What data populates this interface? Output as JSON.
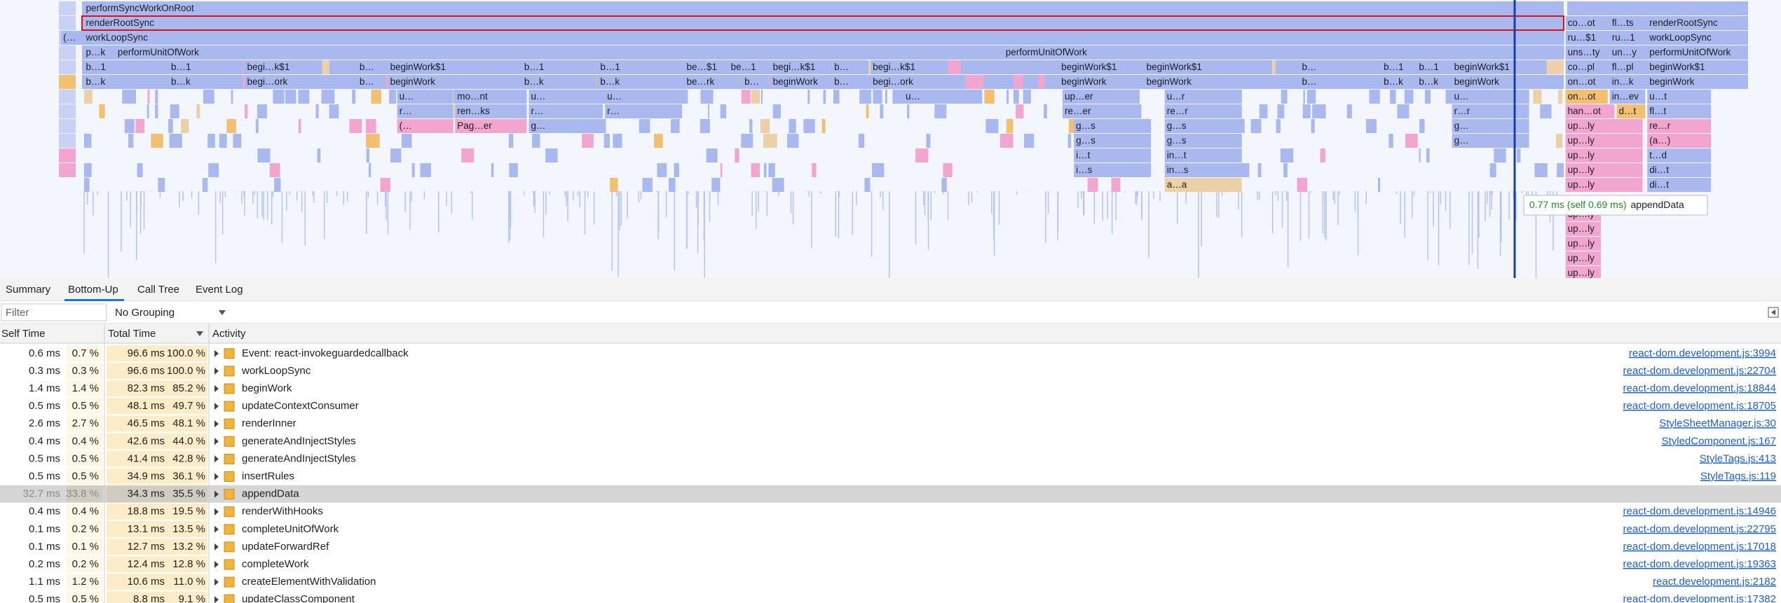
{
  "flame_chart": {
    "rows": [
      [
        "performSyncWorkOnRoot"
      ],
      [
        "renderRootSync",
        "co…ot",
        "fl…ts",
        "renderRootSync"
      ],
      [
        "(…",
        "workLoopSync",
        "ru…$1",
        "ru…1",
        "workLoopSync"
      ],
      [
        "p…k",
        "performUnitOfWork",
        "performUnitOfWork",
        "uns…ty",
        "un…y",
        "performUnitOfWork"
      ],
      [
        "b…1",
        "b…1",
        "begi…k$1",
        "b…",
        "beginWork$1",
        "b…1",
        "b…1",
        "be…$1",
        "be…1",
        "begi…k$1",
        "b…",
        "begi…k$1",
        "beginWork$1",
        "beginWork$1",
        "b…",
        "b…1",
        "b…1",
        "beginWork$1",
        "co…pl",
        "fl…pl",
        "beginWork$1"
      ],
      [
        "b…k",
        "b…k",
        "begi…ork",
        "b…",
        "beginWork",
        "b…k",
        "b…k",
        "be…rk",
        "b…",
        "beginWork",
        "b…",
        "begi…ork",
        "beginWork",
        "beginWork",
        "b…",
        "b…k",
        "b…k",
        "beginWork",
        "on…ot",
        "in…k",
        "beginWork"
      ],
      [
        "u…",
        "mo…nt",
        "u…",
        "u…",
        "u…",
        "up…er",
        "u…r",
        "u…",
        "on…ot",
        "in…ev",
        "u…t"
      ],
      [
        "r…",
        "ren…ks",
        "r…",
        "r…",
        "re…er",
        "re…r",
        "r…r",
        "han…ot",
        "d…t",
        "fl…t"
      ],
      [
        "(…",
        "Pag…er",
        "g…",
        "g…s",
        "g…s",
        "g…",
        "up…ly",
        "re…r"
      ],
      [
        "g…s",
        "g…s",
        "g…",
        "up…ly",
        "(a…)"
      ],
      [
        "i…t",
        "in…t",
        "up…ly",
        "t…d"
      ],
      [
        "i…s",
        "in…s",
        "up…ly",
        "di…t"
      ],
      [
        "a…a",
        "up…ly",
        "di…t"
      ],
      [],
      [
        "up…ly"
      ],
      [
        "up…ly"
      ],
      [
        "up…ly"
      ],
      [
        "up…ly"
      ],
      [
        "up…ly"
      ]
    ],
    "tooltip": {
      "time": "0.77 ms (self 0.69 ms)",
      "name": "appendData"
    }
  },
  "tabs": [
    "Summary",
    "Bottom-Up",
    "Call Tree",
    "Event Log"
  ],
  "filter": {
    "placeholder": "Filter",
    "grouping": "No Grouping"
  },
  "table": {
    "columns": [
      "Self Time",
      "Total Time",
      "Activity"
    ],
    "rows": [
      [
        "0.6 ms",
        "0.7 %",
        "96.6 ms",
        "100.0 %",
        "Event: react-invokeguardedcallback",
        "react-dom.development.js:3994"
      ],
      [
        "0.3 ms",
        "0.3 %",
        "96.6 ms",
        "100.0 %",
        "workLoopSync",
        "react-dom.development.js:22704"
      ],
      [
        "1.4 ms",
        "1.4 %",
        "82.3 ms",
        "85.2 %",
        "beginWork",
        "react-dom.development.js:18844"
      ],
      [
        "0.5 ms",
        "0.5 %",
        "48.1 ms",
        "49.7 %",
        "updateContextConsumer",
        "react-dom.development.js:18705"
      ],
      [
        "2.6 ms",
        "2.7 %",
        "46.5 ms",
        "48.1 %",
        "renderInner",
        "StyleSheetManager.js:30"
      ],
      [
        "0.4 ms",
        "0.4 %",
        "42.6 ms",
        "44.0 %",
        "generateAndInjectStyles",
        "StyledComponent.js:167"
      ],
      [
        "0.5 ms",
        "0.5 %",
        "41.4 ms",
        "42.8 %",
        "generateAndInjectStyles",
        "StyleTags.js:413"
      ],
      [
        "0.5 ms",
        "0.5 %",
        "34.9 ms",
        "36.1 %",
        "insertRules",
        "StyleTags.js:119"
      ],
      [
        "32.7 ms",
        "33.8 %",
        "34.3 ms",
        "35.5 %",
        "appendData"
      ],
      [
        "0.4 ms",
        "0.4 %",
        "18.8 ms",
        "19.5 %",
        "renderWithHooks",
        "react-dom.development.js:14946"
      ],
      [
        "0.1 ms",
        "0.2 %",
        "13.1 ms",
        "13.5 %",
        "completeUnitOfWork",
        "react-dom.development.js:22795"
      ],
      [
        "0.1 ms",
        "0.1 %",
        "12.7 ms",
        "13.2 %",
        "updateForwardRef",
        "react-dom.development.js:17018"
      ],
      [
        "0.2 ms",
        "0.2 %",
        "12.4 ms",
        "12.8 %",
        "completeWork",
        "react-dom.development.js:19363"
      ],
      [
        "1.1 ms",
        "1.2 %",
        "10.6 ms",
        "11.0 %",
        "createElementWithValidation",
        "react.development.js:2182"
      ],
      [
        "0.5 ms",
        "0.5 %",
        "8.8 ms",
        "9.1 %",
        "updateClassComponent",
        "react-dom.development.js:17382"
      ]
    ]
  }
}
